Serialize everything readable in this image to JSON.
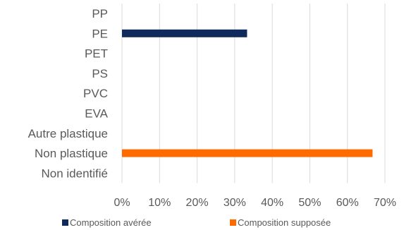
{
  "chart_data": {
    "type": "bar",
    "orientation": "horizontal",
    "categories": [
      "PP",
      "PE",
      "PET",
      "PS",
      "PVC",
      "EVA",
      "Autre plastique",
      "Non plastique",
      "Non identifié"
    ],
    "series": [
      {
        "name": "Composition avérée",
        "color": "#102a5c",
        "values": [
          0,
          33.3,
          0,
          0,
          0,
          0,
          0,
          0,
          0
        ]
      },
      {
        "name": "Composition supposée",
        "color": "#ff6a00",
        "values": [
          0,
          0,
          0,
          0,
          0,
          0,
          0,
          66.7,
          0
        ]
      }
    ],
    "x_ticks": [
      "0%",
      "10%",
      "20%",
      "30%",
      "40%",
      "50%",
      "60%",
      "70%"
    ],
    "xlim": [
      0,
      70
    ],
    "xlabel": "",
    "ylabel": "",
    "grid": "vertical",
    "legend_position": "bottom"
  }
}
